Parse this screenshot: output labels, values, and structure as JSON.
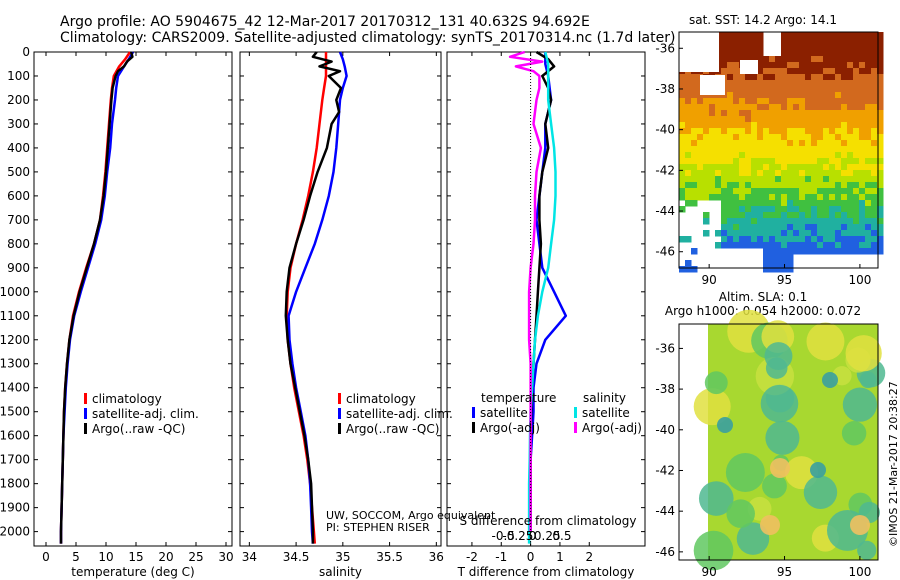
{
  "header": {
    "line1": "Argo profile: AO 5904675_42 12-Mar-2017 20170312_131 40.632S 94.692E",
    "line2": "Climatology: CARS2009. Satellite-adjusted climatology: synTS_20170314.nc (1.7d later)"
  },
  "side_note": "©IMOS 21-Mar-2017 20:38:27",
  "credits": {
    "line1": "UW, SOCCOM, Argo equivalent",
    "line2": "PI: STEPHEN RISER"
  },
  "colors": {
    "climatology": "#ff0000",
    "satellite": "#0000ff",
    "argo": "#000000",
    "sal_sat": "#00e5e5",
    "sal_argo": "#ff00ff"
  },
  "chart_data": [
    {
      "type": "line",
      "title": "",
      "xlabel": "temperature (deg C)",
      "ylabel": "",
      "xlim": [
        -2,
        31
      ],
      "ylim": [
        2060,
        0
      ],
      "xticks": [
        "0",
        "5",
        "10",
        "15",
        "20",
        "25",
        "30"
      ],
      "yticks": [
        "0",
        "100",
        "200",
        "300",
        "400",
        "500",
        "600",
        "700",
        "800",
        "900",
        "1000",
        "1100",
        "1200",
        "1300",
        "1400",
        "1500",
        "1600",
        "1700",
        "1800",
        "1900",
        "2000"
      ],
      "legend": [
        "climatology",
        "satellite-adj. clim.",
        "Argo(..raw -QC)"
      ],
      "series": [
        {
          "name": "climatology",
          "color": "#ff0000",
          "depth": [
            0,
            30,
            60,
            100,
            150,
            200,
            300,
            400,
            500,
            600,
            700,
            800,
            900,
            1000,
            1100,
            1200,
            1300,
            1400,
            1500,
            1600,
            1700,
            1800,
            1900,
            2000,
            2050
          ],
          "values": [
            14.0,
            13.2,
            12.2,
            11.3,
            11.0,
            10.8,
            10.5,
            10.2,
            9.9,
            9.5,
            9.0,
            8.0,
            6.7,
            5.5,
            4.5,
            3.9,
            3.5,
            3.2,
            3.0,
            2.9,
            2.8,
            2.7,
            2.6,
            2.5,
            2.5
          ]
        },
        {
          "name": "satellite-adj. clim.",
          "color": "#0000ff",
          "depth": [
            0,
            30,
            60,
            100,
            150,
            200,
            300,
            400,
            500,
            600,
            700,
            800,
            900,
            1000,
            1100,
            1200,
            1300,
            1400,
            1500,
            1600,
            1700,
            1800,
            1900,
            2000,
            2050
          ],
          "values": [
            14.5,
            13.8,
            13.0,
            12.0,
            11.7,
            11.5,
            11.0,
            10.7,
            10.2,
            9.8,
            9.2,
            8.2,
            7.0,
            5.8,
            4.7,
            4.0,
            3.6,
            3.3,
            3.1,
            2.9,
            2.8,
            2.7,
            2.6,
            2.5,
            2.5
          ]
        },
        {
          "name": "Argo(..raw -QC)",
          "color": "#000000",
          "depth": [
            0,
            20,
            40,
            60,
            80,
            100,
            150,
            200,
            300,
            400,
            500,
            600,
            700,
            800,
            900,
            1000,
            1100,
            1200,
            1300,
            1400,
            1500,
            1600,
            1700,
            1800,
            1900,
            2000,
            2050
          ],
          "values": [
            14.2,
            14.4,
            13.5,
            13.0,
            12.0,
            11.6,
            11.1,
            10.9,
            10.6,
            10.3,
            10.0,
            9.6,
            9.0,
            8.0,
            6.8,
            5.6,
            4.6,
            3.9,
            3.5,
            3.2,
            3.0,
            2.9,
            2.8,
            2.7,
            2.6,
            2.5,
            2.5
          ]
        }
      ]
    },
    {
      "type": "line",
      "title": "",
      "xlabel": "salinity",
      "ylabel": "",
      "xlim": [
        33.9,
        36.05
      ],
      "ylim": [
        2060,
        0
      ],
      "xticks": [
        "34",
        "34.5",
        "35",
        "35.5",
        "36"
      ],
      "legend": [
        "climatology",
        "satellite-adj. clim.",
        "Argo(..raw -QC)"
      ],
      "series": [
        {
          "name": "climatology",
          "color": "#ff0000",
          "depth": [
            0,
            50,
            100,
            150,
            200,
            300,
            400,
            500,
            600,
            700,
            800,
            900,
            1000,
            1100,
            1200,
            1300,
            1400,
            1500,
            1600,
            1700,
            1800,
            1900,
            2000,
            2050
          ],
          "values": [
            34.82,
            34.82,
            34.82,
            34.8,
            34.78,
            34.75,
            34.72,
            34.68,
            34.63,
            34.57,
            34.5,
            34.44,
            34.41,
            34.4,
            34.41,
            34.44,
            34.48,
            34.53,
            34.58,
            34.62,
            34.65,
            34.67,
            34.69,
            34.7
          ]
        },
        {
          "name": "satellite-adj. clim.",
          "color": "#0000ff",
          "depth": [
            0,
            30,
            60,
            100,
            150,
            200,
            300,
            400,
            500,
            600,
            700,
            800,
            900,
            1000,
            1100,
            1200,
            1300,
            1400,
            1500,
            1600,
            1700,
            1800,
            1900,
            2000,
            2050
          ],
          "values": [
            34.97,
            35.0,
            35.02,
            35.04,
            35.0,
            34.97,
            34.95,
            34.93,
            34.9,
            34.85,
            34.78,
            34.7,
            34.6,
            34.5,
            34.42,
            34.43,
            34.46,
            34.5,
            34.55,
            34.6,
            34.63,
            34.65,
            34.66,
            34.67,
            34.68
          ]
        },
        {
          "name": "Argo(..raw -QC)",
          "color": "#000000",
          "depth": [
            0,
            20,
            40,
            60,
            80,
            100,
            150,
            200,
            250,
            300,
            400,
            500,
            600,
            700,
            800,
            900,
            1000,
            1100,
            1200,
            1300,
            1400,
            1500,
            1600,
            1700,
            1800,
            1900,
            2000,
            2050
          ],
          "values": [
            34.72,
            34.68,
            34.88,
            34.75,
            34.97,
            34.85,
            34.98,
            34.93,
            34.96,
            34.88,
            34.83,
            34.73,
            34.65,
            34.58,
            34.5,
            34.43,
            34.4,
            34.39,
            34.41,
            34.44,
            34.49,
            34.54,
            34.59,
            34.63,
            34.66,
            34.67,
            34.68,
            34.68
          ]
        }
      ]
    },
    {
      "type": "line",
      "title": "",
      "xlabel": "T difference from climatology",
      "xlabel2": "S difference from climatology",
      "ylabel": "",
      "xlim": [
        -2.85,
        3.9
      ],
      "ylim": [
        2060,
        0
      ],
      "xticks": [
        "-2",
        "-1",
        "0",
        "1",
        "2"
      ],
      "xticks2": [
        "-0.5",
        "-0.25",
        "0",
        "0.25",
        "0.5"
      ],
      "legend_temperature_title": "temperature",
      "legend_salinity_title": "salinity",
      "legend_temperature": [
        "satellite",
        "Argo(-adj)"
      ],
      "legend_salinity": [
        "satellite",
        "Argo(-adj)"
      ],
      "series": [
        {
          "name": "temperature satellite",
          "color": "#0000ff",
          "depth": [
            0,
            50,
            100,
            200,
            300,
            400,
            500,
            600,
            700,
            800,
            900,
            1000,
            1100,
            1200,
            1300,
            1400,
            1500,
            1600,
            1700,
            1800,
            1900,
            2000
          ],
          "values": [
            0.5,
            0.5,
            0.6,
            0.7,
            0.5,
            0.5,
            0.4,
            0.3,
            0.2,
            0.3,
            0.4,
            0.8,
            1.2,
            0.5,
            0.2,
            0.1,
            0.1,
            0.05,
            0.0,
            0.0,
            0.0,
            0.0
          ]
        },
        {
          "name": "temperature Argo(-adj)",
          "color": "#000000",
          "depth": [
            0,
            30,
            60,
            100,
            150,
            200,
            300,
            400,
            500,
            600,
            700,
            800,
            900,
            1000,
            1100,
            1200,
            1300,
            1400,
            1500,
            1600,
            1700,
            1800,
            1900,
            2000
          ],
          "values": [
            0.2,
            0.6,
            0.8,
            0.4,
            0.6,
            0.7,
            0.5,
            0.6,
            0.4,
            0.3,
            0.3,
            0.35,
            0.3,
            0.25,
            0.2,
            0.15,
            0.1,
            0.05,
            0.02,
            0.0,
            0.0,
            0.0,
            0.0,
            0.0
          ]
        },
        {
          "name": "salinity satellite",
          "color": "#00e5e5",
          "depth": [
            0,
            50,
            100,
            200,
            300,
            400,
            500,
            600,
            700,
            800,
            900,
            1000,
            1100,
            1200,
            1300,
            1400,
            1500,
            1600,
            1700,
            1800,
            1900,
            2000,
            2050
          ],
          "values": [
            0.5,
            0.6,
            0.6,
            0.6,
            0.7,
            0.8,
            0.85,
            0.85,
            0.8,
            0.7,
            0.6,
            0.4,
            0.25,
            0.15,
            0.1,
            0.05,
            0.0,
            -0.02,
            -0.03,
            -0.05,
            -0.05,
            -0.05,
            -0.05
          ]
        },
        {
          "name": "salinity Argo(-adj)",
          "color": "#ff00ff",
          "depth": [
            0,
            20,
            40,
            60,
            80,
            100,
            150,
            200,
            300,
            400,
            500,
            600,
            700,
            800,
            900,
            1000,
            1100,
            1200,
            1300,
            1400,
            1500,
            1600,
            1700,
            1800,
            1900,
            2000
          ],
          "values": [
            -0.2,
            -0.7,
            0.4,
            -0.5,
            0.1,
            0.3,
            0.3,
            0.2,
            0.1,
            0.35,
            0.2,
            0.15,
            0.15,
            0.1,
            0.0,
            -0.05,
            -0.05,
            -0.05,
            0.0,
            0.0,
            0.0,
            0.0,
            0.0,
            0.0,
            0.0,
            0.0
          ]
        }
      ]
    },
    {
      "type": "heatmap",
      "title": "sat. SST: 14.2 Argo: 14.1",
      "xlim": [
        88,
        101.2
      ],
      "ylim": [
        -46.8,
        -35.2
      ],
      "xticks": [
        "90",
        "95",
        "100"
      ],
      "yticks": [
        "-36",
        "-38",
        "-40",
        "-42",
        "-44",
        "-46"
      ]
    },
    {
      "type": "heatmap",
      "title": "Altim. SLA: 0.1",
      "title2": "Argo h1000: 0.054 h2000: 0.072",
      "xlim": [
        88,
        101.2
      ],
      "ylim": [
        -46.4,
        -34.8
      ],
      "xticks": [
        "90",
        "95",
        "100"
      ],
      "yticks": [
        "-36",
        "-38",
        "-40",
        "-42",
        "-44",
        "-46"
      ]
    }
  ]
}
